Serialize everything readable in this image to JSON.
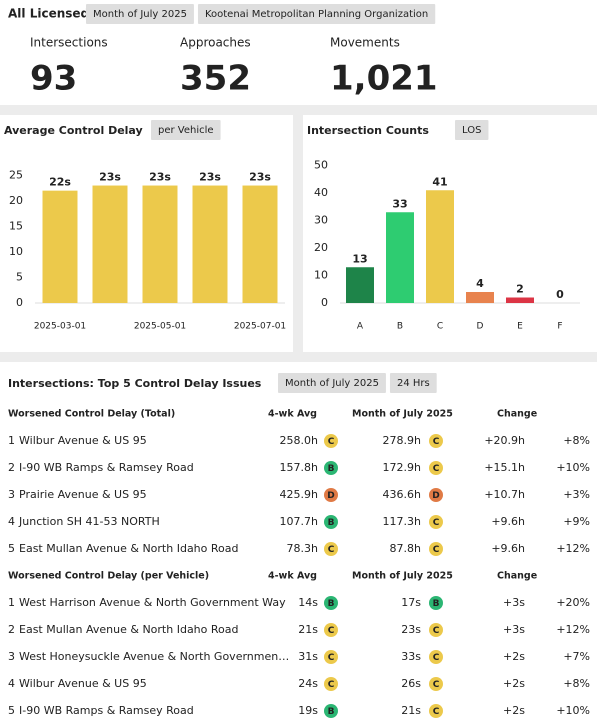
{
  "header": {
    "title": "All Licensed",
    "tags": [
      "Month of July 2025",
      "Kootenai Metropolitan Planning Organization"
    ]
  },
  "kpis": [
    {
      "label": "Intersections",
      "value": "93"
    },
    {
      "label": "Approaches",
      "value": "352"
    },
    {
      "label": "Movements",
      "value": "1,021"
    }
  ],
  "chart_data": [
    {
      "type": "bar",
      "title": "Average Control Delay",
      "tag": "per Vehicle",
      "categories": [
        "2025-03-01",
        null,
        "2025-05-01",
        null,
        "2025-07-01"
      ],
      "values": [
        22,
        23,
        23,
        23,
        23
      ],
      "value_labels": [
        "22s",
        "23s",
        "23s",
        "23s",
        "23s"
      ],
      "color": "#ecc94b",
      "ylim": [
        0,
        28
      ],
      "yticks": [
        0,
        5,
        10,
        15,
        20,
        25
      ]
    },
    {
      "type": "bar",
      "title": "Intersection Counts",
      "tag": "LOS",
      "categories": [
        "A",
        "B",
        "C",
        "D",
        "E",
        "F"
      ],
      "values": [
        13,
        33,
        41,
        4,
        2,
        0
      ],
      "colors": [
        "#1e8449",
        "#2ecc71",
        "#ecc94b",
        "#e8834e",
        "#dc3545",
        "#dc3545"
      ],
      "ylim": [
        0,
        52
      ],
      "yticks": [
        0,
        10,
        20,
        30,
        40,
        50
      ]
    }
  ],
  "los_colors": {
    "B": "#2bb673",
    "C": "#ecc94b",
    "D": "#e07a45"
  },
  "table": {
    "title": "Intersections: Top 5 Control Delay Issues",
    "tags": [
      "Month of July 2025",
      "24 Hrs"
    ],
    "sections": [
      {
        "columns": [
          "Worsened Control Delay (Total)",
          "4-wk Avg",
          "Month of July 2025",
          "Change"
        ],
        "rows": [
          {
            "rank": "1",
            "name": "Wilbur Avenue & US 95",
            "avg": "258.0h",
            "avg_los": "C",
            "month": "278.9h",
            "month_los": "C",
            "change": "+20.9h",
            "pct": "+8%"
          },
          {
            "rank": "2",
            "name": "I-90 WB Ramps & Ramsey Road",
            "avg": "157.8h",
            "avg_los": "B",
            "month": "172.9h",
            "month_los": "C",
            "change": "+15.1h",
            "pct": "+10%"
          },
          {
            "rank": "3",
            "name": "Prairie Avenue & US 95",
            "avg": "425.9h",
            "avg_los": "D",
            "month": "436.6h",
            "month_los": "D",
            "change": "+10.7h",
            "pct": "+3%"
          },
          {
            "rank": "4",
            "name": "Junction SH 41-53 NORTH",
            "avg": "107.7h",
            "avg_los": "B",
            "month": "117.3h",
            "month_los": "C",
            "change": "+9.6h",
            "pct": "+9%"
          },
          {
            "rank": "5",
            "name": "East Mullan Avenue & North Idaho Road",
            "avg": "78.3h",
            "avg_los": "C",
            "month": "87.8h",
            "month_los": "C",
            "change": "+9.6h",
            "pct": "+12%"
          }
        ]
      },
      {
        "columns": [
          "Worsened Control Delay (per Vehicle)",
          "4-wk Avg",
          "Month of July 2025",
          "Change"
        ],
        "rows": [
          {
            "rank": "1",
            "name": "West Harrison Avenue & North Government Way",
            "avg": "14s",
            "avg_los": "B",
            "month": "17s",
            "month_los": "B",
            "change": "+3s",
            "pct": "+20%"
          },
          {
            "rank": "2",
            "name": "East Mullan Avenue & North Idaho Road",
            "avg": "21s",
            "avg_los": "C",
            "month": "23s",
            "month_los": "C",
            "change": "+3s",
            "pct": "+12%"
          },
          {
            "rank": "3",
            "name": "West Honeysuckle Avenue & North Governmen…",
            "avg": "31s",
            "avg_los": "C",
            "month": "33s",
            "month_los": "C",
            "change": "+2s",
            "pct": "+7%"
          },
          {
            "rank": "4",
            "name": "Wilbur Avenue & US 95",
            "avg": "24s",
            "avg_los": "C",
            "month": "26s",
            "month_los": "C",
            "change": "+2s",
            "pct": "+8%"
          },
          {
            "rank": "5",
            "name": "I-90 WB Ramps & Ramsey Road",
            "avg": "19s",
            "avg_los": "B",
            "month": "21s",
            "month_los": "C",
            "change": "+2s",
            "pct": "+10%"
          }
        ]
      }
    ]
  }
}
